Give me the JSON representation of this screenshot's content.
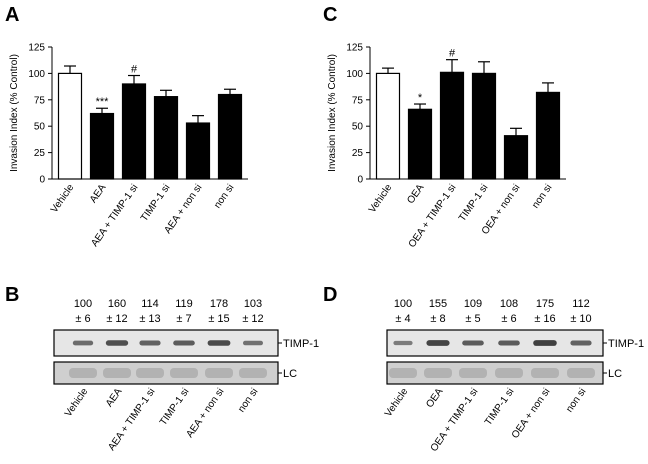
{
  "chart_data": [
    {
      "panel": "A",
      "type": "bar",
      "ylabel": "Invasion Index (% Control)",
      "ylim": [
        0,
        125
      ],
      "yticks": [
        "0",
        "25",
        "50",
        "75",
        "100",
        "125"
      ],
      "categories": [
        "Vehicle",
        "AEA",
        "AEA + TIMP-1 si",
        "TIMP-1 si",
        "AEA + non si",
        "non si"
      ],
      "values": [
        100,
        62,
        90,
        78,
        53,
        80
      ],
      "errors": [
        7,
        5,
        8,
        6,
        7,
        5
      ],
      "annotations": [
        "",
        "***",
        "#",
        "",
        "",
        ""
      ],
      "fills": [
        "white",
        "black",
        "black",
        "black",
        "black",
        "black"
      ]
    },
    {
      "panel": "C",
      "type": "bar",
      "ylabel": "Invasion Index (% Control)",
      "ylim": [
        0,
        125
      ],
      "yticks": [
        "0",
        "25",
        "50",
        "75",
        "100",
        "125"
      ],
      "categories": [
        "Vehicle",
        "OEA",
        "OEA + TIMP-1 si",
        "TIMP-1 si",
        "OEA + non si",
        "non si"
      ],
      "values": [
        100,
        66,
        101,
        100,
        41,
        82
      ],
      "errors": [
        5,
        5,
        12,
        11,
        7,
        9
      ],
      "annotations": [
        "",
        "*",
        "#",
        "",
        "",
        ""
      ],
      "fills": [
        "white",
        "black",
        "black",
        "black",
        "black",
        "black"
      ]
    }
  ],
  "blots": [
    {
      "panel": "B",
      "values": [
        "100",
        "160",
        "114",
        "119",
        "178",
        "103"
      ],
      "errors": [
        "± 6",
        "± 12",
        "± 13",
        "± 7",
        "± 15",
        "± 12"
      ],
      "band_label": "TIMP-1",
      "lc_label": "LC",
      "intensities": [
        0.55,
        0.8,
        0.65,
        0.7,
        0.85,
        0.5
      ],
      "categories": [
        "Vehicle",
        "AEA",
        "AEA + TIMP-1 si",
        "TIMP-1 si",
        "AEA + non si",
        "non si"
      ]
    },
    {
      "panel": "D",
      "values": [
        "100",
        "155",
        "109",
        "108",
        "175",
        "112"
      ],
      "errors": [
        "± 4",
        "± 8",
        "± 5",
        "± 6",
        "± 16",
        "± 10"
      ],
      "band_label": "TIMP-1",
      "lc_label": "LC",
      "intensities": [
        0.4,
        0.9,
        0.7,
        0.7,
        0.95,
        0.65
      ],
      "categories": [
        "Vehicle",
        "OEA",
        "OEA + TIMP-1 si",
        "TIMP-1 si",
        "OEA + non si",
        "non si"
      ]
    }
  ],
  "colors": {
    "ink": "#000000",
    "bar_fill": "#000000",
    "blot_bg": "#e6e6e6",
    "lc_bg": "#cfcfcf",
    "band": "#3a3a3a"
  }
}
